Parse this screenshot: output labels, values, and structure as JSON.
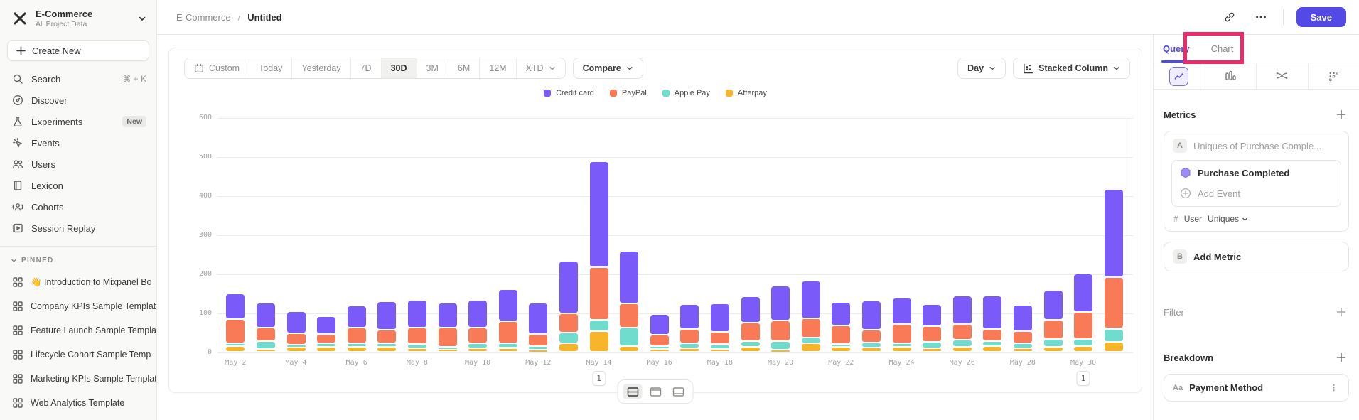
{
  "colors": {
    "accent": "#5349E6",
    "annotation_pink": "#EE2B68",
    "credit_card": "#7A5AF8",
    "paypal": "#F87A56",
    "apple_pay": "#6FDCCD",
    "afterpay": "#F7B52C"
  },
  "sidebar": {
    "workspace": {
      "name": "E-Commerce",
      "subtitle": "All Project Data"
    },
    "create_new_label": "Create New",
    "nav": [
      {
        "icon": "search",
        "label": "Search",
        "shortcut": "⌘ + K"
      },
      {
        "icon": "discover",
        "label": "Discover"
      },
      {
        "icon": "experiments",
        "label": "Experiments",
        "badge": "New"
      },
      {
        "icon": "events",
        "label": "Events"
      },
      {
        "icon": "users",
        "label": "Users"
      },
      {
        "icon": "lexicon",
        "label": "Lexicon"
      },
      {
        "icon": "cohorts",
        "label": "Cohorts"
      },
      {
        "icon": "session-replay",
        "label": "Session Replay"
      }
    ],
    "pinned_header": "PINNED",
    "pinned": [
      {
        "label": "👋 Introduction to Mixpanel Bo"
      },
      {
        "label": "Company KPIs Sample Templat"
      },
      {
        "label": "Feature Launch Sample Templa"
      },
      {
        "label": "Lifecycle Cohort Sample Temp"
      },
      {
        "label": "Marketing KPIs Sample Templat"
      },
      {
        "label": "Web Analytics Template"
      }
    ]
  },
  "topbar": {
    "breadcrumb_project": "E-Commerce",
    "breadcrumb_sep": "/",
    "breadcrumb_page": "Untitled",
    "save_label": "Save"
  },
  "toolbar": {
    "date_buttons": [
      "Custom",
      "Today",
      "Yesterday",
      "7D",
      "30D",
      "3M",
      "6M",
      "12M",
      "XTD"
    ],
    "active_date": "30D",
    "compare_label": "Compare",
    "granularity_label": "Day",
    "chart_type_label": "Stacked Column"
  },
  "right_panel": {
    "tabs": [
      {
        "label": "Query",
        "active": true
      },
      {
        "label": "Chart",
        "active": false
      }
    ],
    "viz_tabs": [
      "insights",
      "funnels",
      "flows",
      "retention"
    ],
    "highlight_annotation_target": "Chart",
    "metrics_header": "Metrics",
    "metric_a": {
      "badge": "A",
      "placeholder": "Uniques of Purchase Comple...",
      "event": "Purchase Completed",
      "add_event_label": "Add Event",
      "count_prefix": "#",
      "count_entity": "User",
      "count_type": "Uniques"
    },
    "metric_b": {
      "badge": "B",
      "label": "Add Metric"
    },
    "filter_header": "Filter",
    "breakdown_header": "Breakdown",
    "breakdown_item": {
      "type_badge": "Aa",
      "label": "Payment Method"
    }
  },
  "chart_data": {
    "type": "bar",
    "subtype": "stacked-column",
    "title": "",
    "xlabel": "",
    "ylabel": "",
    "ylim": [
      0,
      600
    ],
    "y_ticks": [
      0,
      100,
      200,
      300,
      400,
      500,
      600
    ],
    "grid": "horizontal",
    "legend_position": "top-center",
    "x": [
      "May 2",
      "May 3",
      "May 4",
      "May 5",
      "May 6",
      "May 7",
      "May 8",
      "May 9",
      "May 10",
      "May 11",
      "May 12",
      "May 13",
      "May 14",
      "May 15",
      "May 16",
      "May 17",
      "May 18",
      "May 19",
      "May 20",
      "May 21",
      "May 22",
      "May 23",
      "May 24",
      "May 25",
      "May 26",
      "May 27",
      "May 28",
      "May 29",
      "May 30",
      "May 31"
    ],
    "tick_every": 2,
    "stack_order_bottom_to_top": [
      "Afterpay",
      "Apple Pay",
      "PayPal",
      "Credit card"
    ],
    "series": [
      {
        "name": "Credit card",
        "color": "#7A5AF8",
        "values": [
          66,
          63,
          56,
          46,
          56,
          73,
          71,
          63,
          71,
          81,
          79,
          134,
          270,
          136,
          54,
          63,
          72,
          68,
          90,
          95,
          60,
          74,
          68,
          57,
          73,
          84,
          68,
          78,
          98,
          226
        ]
      },
      {
        "name": "PayPal",
        "color": "#F87A56",
        "values": [
          62,
          35,
          29,
          24,
          41,
          35,
          42,
          50,
          41,
          58,
          31,
          49,
          136,
          61,
          28,
          37,
          32,
          46,
          52,
          49,
          47,
          34,
          49,
          40,
          40,
          31,
          30,
          49,
          70,
          132
        ]
      },
      {
        "name": "Apple Pay",
        "color": "#6FDCCD",
        "values": [
          7,
          19,
          6,
          9,
          9,
          9,
          10,
          5,
          12,
          11,
          9,
          28,
          29,
          47,
          8,
          13,
          12,
          16,
          23,
          15,
          8,
          12,
          10,
          16,
          19,
          14,
          13,
          20,
          18,
          33
        ]
      },
      {
        "name": "Afterpay",
        "color": "#F7B52C",
        "values": [
          15,
          8,
          13,
          12,
          12,
          12,
          10,
          7,
          9,
          10,
          6,
          21,
          52,
          15,
          7,
          9,
          7,
          12,
          5,
          22,
          12,
          11,
          12,
          9,
          12,
          14,
          9,
          12,
          14,
          26
        ]
      }
    ],
    "annotations": [
      {
        "label": "1",
        "x_index": 12
      },
      {
        "label": "1",
        "x_index": 28
      }
    ]
  },
  "bottom_toggles": [
    {
      "name": "split-view",
      "active": true
    },
    {
      "name": "top-panel-view",
      "active": false
    },
    {
      "name": "bottom-panel-view",
      "active": false
    }
  ]
}
